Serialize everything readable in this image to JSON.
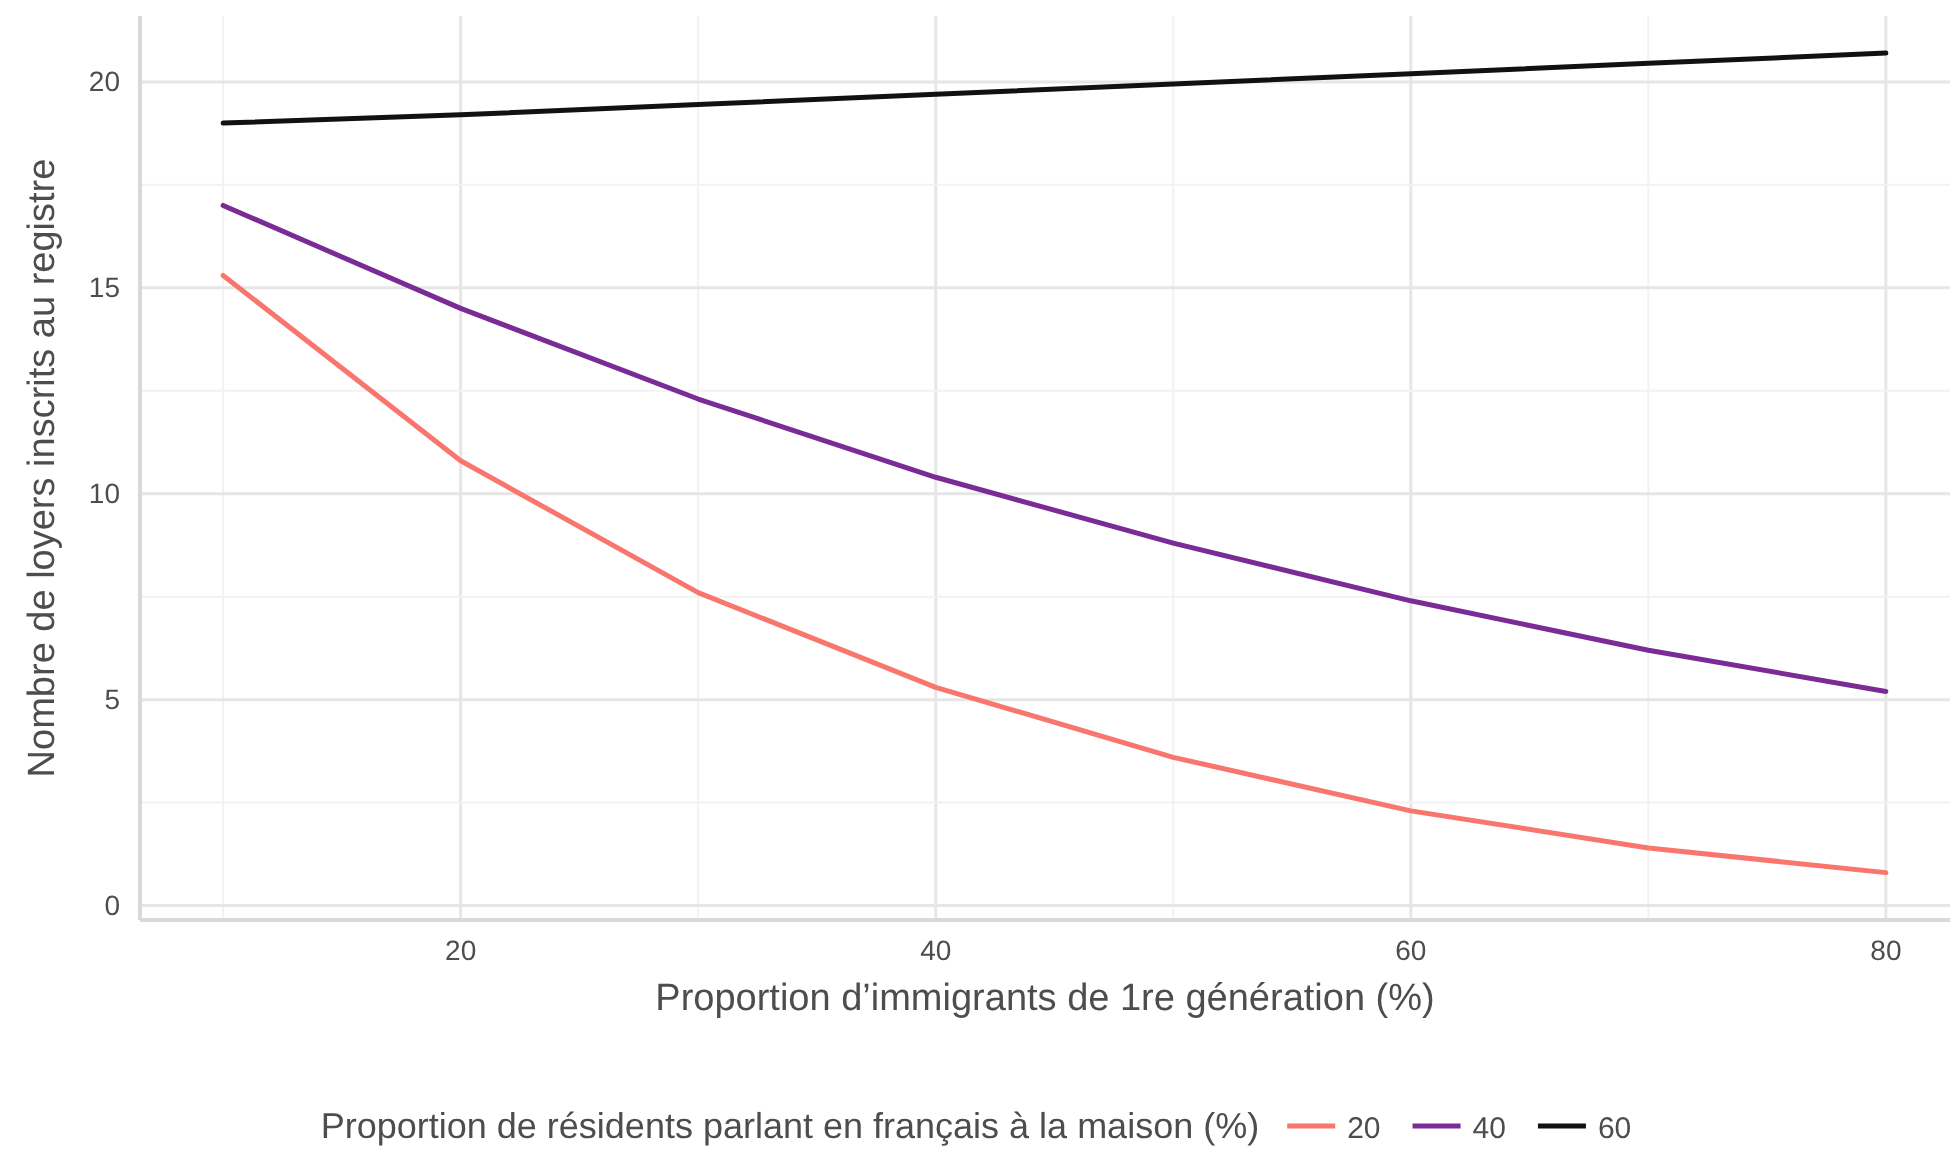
{
  "chart_data": {
    "type": "line",
    "xlabel": "Proportion d’immigrants de 1re génération (%)",
    "ylabel": "Nombre de loyers inscrits au registre",
    "legend_title": "Proportion de résidents parlant en français à la maison (%)",
    "x": [
      10,
      20,
      30,
      40,
      50,
      60,
      70,
      80
    ],
    "series": [
      {
        "name": "20",
        "color": "#f8766d",
        "values": [
          15.3,
          10.8,
          7.6,
          5.3,
          3.6,
          2.3,
          1.4,
          0.8
        ]
      },
      {
        "name": "40",
        "color": "#7b2b96",
        "values": [
          17.0,
          14.5,
          12.3,
          10.4,
          8.8,
          7.4,
          6.2,
          5.2
        ]
      },
      {
        "name": "60",
        "color": "#111111",
        "values": [
          19.0,
          19.2,
          19.45,
          19.7,
          19.95,
          20.2,
          20.45,
          20.7
        ]
      }
    ],
    "xlim": [
      6.5,
      82.7
    ],
    "ylim": [
      -0.35,
      21.6
    ],
    "xticks": [
      {
        "value": 10,
        "label": null
      },
      20,
      {
        "value": 30,
        "label": null
      },
      40,
      {
        "value": 50,
        "label": null
      },
      60,
      {
        "value": 70,
        "label": null
      },
      80
    ],
    "yticks": [
      0,
      {
        "value": 2.5,
        "label": null
      },
      5,
      {
        "value": 7.5,
        "label": null
      },
      10,
      {
        "value": 12.5,
        "label": null
      },
      15,
      {
        "value": 17.5,
        "label": null
      },
      20
    ],
    "grid": true,
    "legend": "bottom",
    "marker": "none",
    "line_style": "solid"
  }
}
